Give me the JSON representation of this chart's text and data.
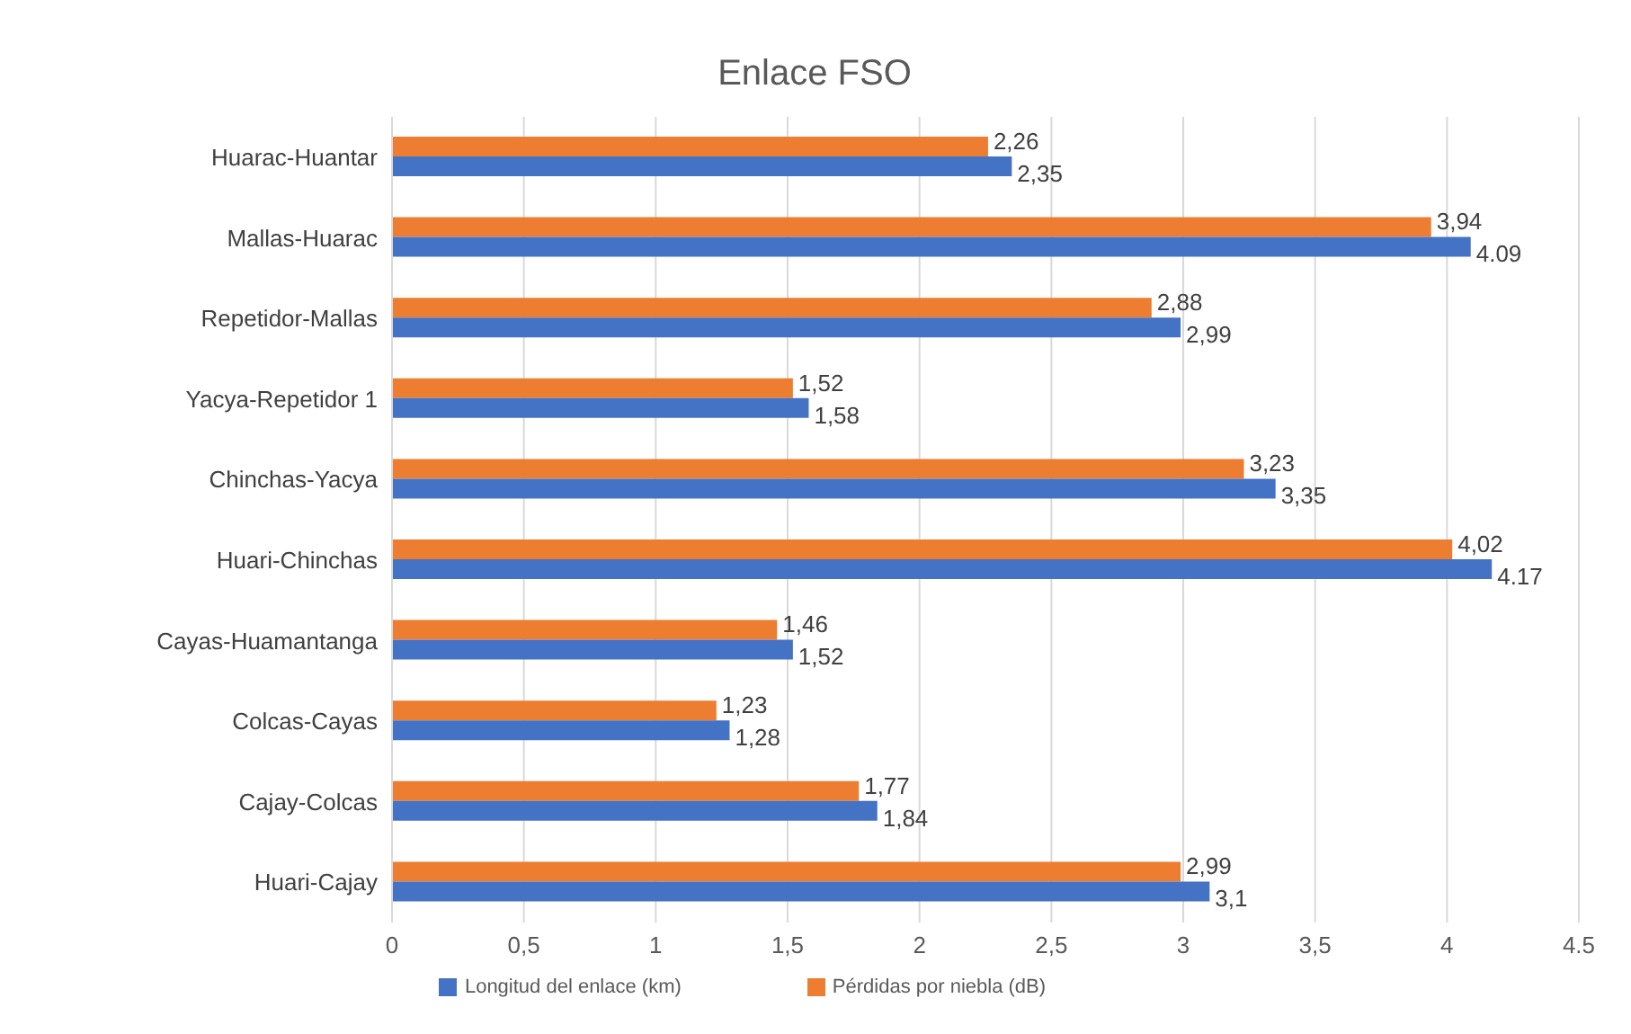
{
  "chart_data": {
    "type": "bar",
    "orientation": "horizontal",
    "title": "Enlace FSO",
    "categories": [
      "Huarac-Huantar",
      "Mallas-Huarac",
      "Repetidor-Mallas",
      "Yacya-Repetidor 1",
      "Chinchas-Yacya",
      "Huari-Chinchas",
      "Cayas-Huamantanga",
      "Colcas-Cayas",
      "Cajay-Colcas",
      "Huari-Cajay"
    ],
    "series": [
      {
        "name": "Pérdidas por niebla (dB)",
        "color": "#ed7d31",
        "values": [
          2.26,
          3.94,
          2.88,
          1.52,
          3.23,
          4.02,
          1.46,
          1.23,
          1.77,
          2.99
        ],
        "value_labels": [
          "2,26",
          "3,94",
          "2,88",
          "1,52",
          "3,23",
          "4,02",
          "1,46",
          "1,23",
          "1,77",
          "2,99"
        ]
      },
      {
        "name": "Longitud del enlace (km)",
        "color": "#4472c4",
        "values": [
          2.35,
          4.09,
          2.99,
          1.58,
          3.35,
          4.17,
          1.52,
          1.28,
          1.84,
          3.1
        ],
        "value_labels": [
          "2,35",
          "4.09",
          "2,99",
          "1,58",
          "3,35",
          "4.17",
          "1,52",
          "1,28",
          "1,84",
          "3,1"
        ]
      }
    ],
    "xlim": [
      0,
      4.5
    ],
    "xticks": [
      0,
      {
        "value": 0.5,
        "label": "0,5"
      },
      1,
      {
        "value": 1.5,
        "label": "1,5"
      },
      2,
      {
        "value": 2.5,
        "label": "2,5"
      },
      3,
      {
        "value": 3.5,
        "label": "3,5"
      },
      4,
      {
        "value": 4.5,
        "label": "4.5"
      }
    ],
    "grid": "x",
    "legend": "bottom"
  }
}
